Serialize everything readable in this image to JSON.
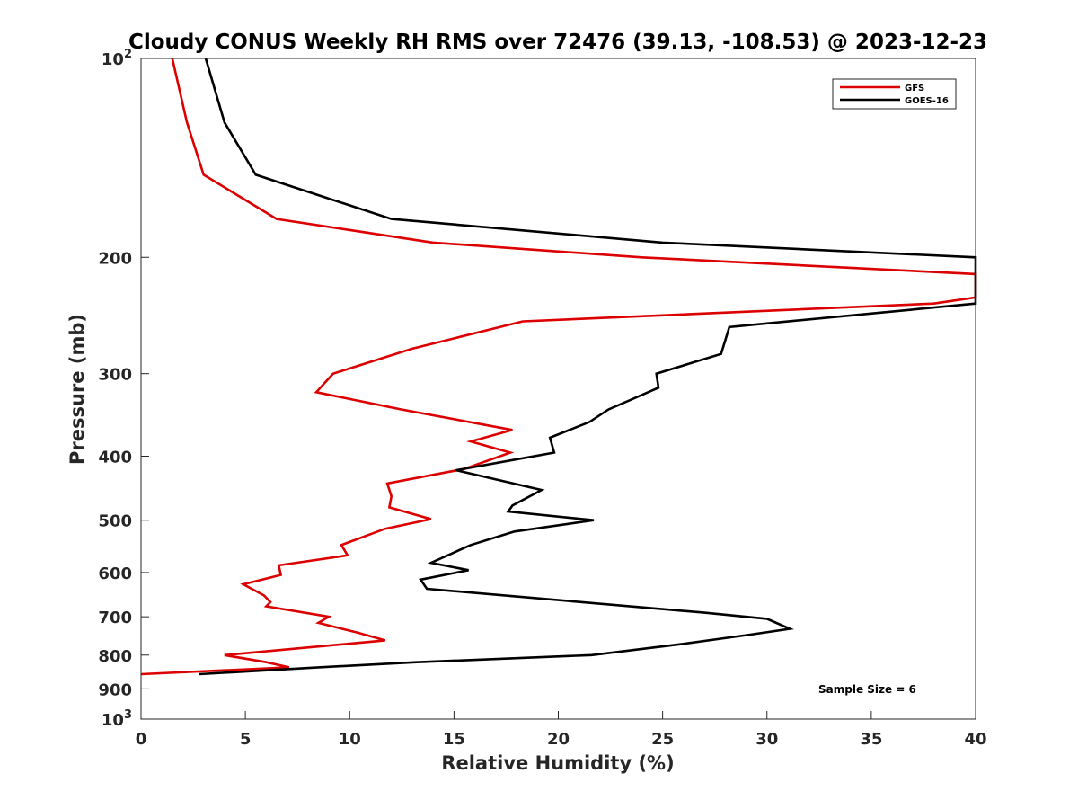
{
  "chart_data": {
    "type": "line",
    "title": "Cloudy CONUS Weekly RH RMS over 72476 (39.13, -108.53) @ 2023-12-23",
    "xlabel": "Relative Humidity (%)",
    "ylabel": "Pressure (mb)",
    "xlim": [
      0,
      40
    ],
    "ylim": [
      100,
      1000
    ],
    "yscale": "log",
    "y_reversed": true,
    "grid": false,
    "legend_position": "top-right",
    "x_ticks": [
      {
        "value": 0,
        "label": "0"
      },
      {
        "value": 5,
        "label": "5"
      },
      {
        "value": 10,
        "label": "10"
      },
      {
        "value": 15,
        "label": "15"
      },
      {
        "value": 20,
        "label": "20"
      },
      {
        "value": 25,
        "label": "25"
      },
      {
        "value": 30,
        "label": "30"
      },
      {
        "value": 35,
        "label": "35"
      },
      {
        "value": 40,
        "label": "40"
      }
    ],
    "y_ticks": [
      {
        "value": 100,
        "label": "10",
        "sup": "2"
      },
      {
        "value": 200,
        "label": "200",
        "sup": ""
      },
      {
        "value": 300,
        "label": "300",
        "sup": ""
      },
      {
        "value": 400,
        "label": "400",
        "sup": ""
      },
      {
        "value": 500,
        "label": "500",
        "sup": ""
      },
      {
        "value": 600,
        "label": "600",
        "sup": ""
      },
      {
        "value": 700,
        "label": "700",
        "sup": ""
      },
      {
        "value": 800,
        "label": "800",
        "sup": ""
      },
      {
        "value": 900,
        "label": "900",
        "sup": ""
      },
      {
        "value": 1000,
        "label": "10",
        "sup": "3"
      }
    ],
    "series": [
      {
        "name": "GFS",
        "color": "#dd0000",
        "points": [
          [
            1.5,
            100
          ],
          [
            2.2,
            125
          ],
          [
            3.0,
            150
          ],
          [
            6.5,
            175
          ],
          [
            14.0,
            190
          ],
          [
            24.0,
            200
          ],
          [
            40.0,
            212
          ],
          [
            40.0,
            230
          ],
          [
            38.0,
            235
          ],
          [
            18.3,
            250
          ],
          [
            13.0,
            275
          ],
          [
            9.2,
            300
          ],
          [
            8.4,
            320
          ],
          [
            12.5,
            340
          ],
          [
            17.8,
            365
          ],
          [
            15.8,
            380
          ],
          [
            17.7,
            395
          ],
          [
            15.5,
            418
          ],
          [
            11.8,
            440
          ],
          [
            12.0,
            460
          ],
          [
            11.9,
            478
          ],
          [
            13.9,
            498
          ],
          [
            11.7,
            515
          ],
          [
            9.6,
            545
          ],
          [
            9.9,
            565
          ],
          [
            6.6,
            585
          ],
          [
            6.7,
            605
          ],
          [
            4.9,
            625
          ],
          [
            5.9,
            650
          ],
          [
            6.2,
            665
          ],
          [
            6.0,
            675
          ],
          [
            9.0,
            700
          ],
          [
            8.5,
            715
          ],
          [
            10.4,
            740
          ],
          [
            11.7,
            760
          ],
          [
            4.0,
            800
          ],
          [
            6.0,
            820
          ],
          [
            7.1,
            835
          ],
          [
            0.0,
            855
          ]
        ]
      },
      {
        "name": "GOES-16",
        "color": "#000000",
        "points": [
          [
            3.1,
            100
          ],
          [
            4.0,
            125
          ],
          [
            5.5,
            150
          ],
          [
            12.0,
            175
          ],
          [
            25.0,
            190
          ],
          [
            40.0,
            200
          ],
          [
            40.0,
            235
          ],
          [
            28.2,
            255
          ],
          [
            27.8,
            280
          ],
          [
            24.7,
            300
          ],
          [
            24.8,
            315
          ],
          [
            22.4,
            340
          ],
          [
            21.5,
            355
          ],
          [
            19.6,
            375
          ],
          [
            19.8,
            395
          ],
          [
            15.1,
            420
          ],
          [
            19.2,
            450
          ],
          [
            17.8,
            475
          ],
          [
            17.6,
            485
          ],
          [
            21.7,
            500
          ],
          [
            17.9,
            520
          ],
          [
            15.8,
            545
          ],
          [
            13.9,
            580
          ],
          [
            15.7,
            595
          ],
          [
            13.4,
            615
          ],
          [
            13.7,
            635
          ],
          [
            27.0,
            690
          ],
          [
            30.0,
            705
          ],
          [
            31.1,
            730
          ],
          [
            29.2,
            745
          ],
          [
            25.9,
            770
          ],
          [
            21.6,
            800
          ],
          [
            13.2,
            820
          ],
          [
            8.5,
            835
          ],
          [
            2.8,
            855
          ]
        ]
      }
    ],
    "annotations": [
      {
        "text": "Sample Size = 6"
      }
    ]
  }
}
